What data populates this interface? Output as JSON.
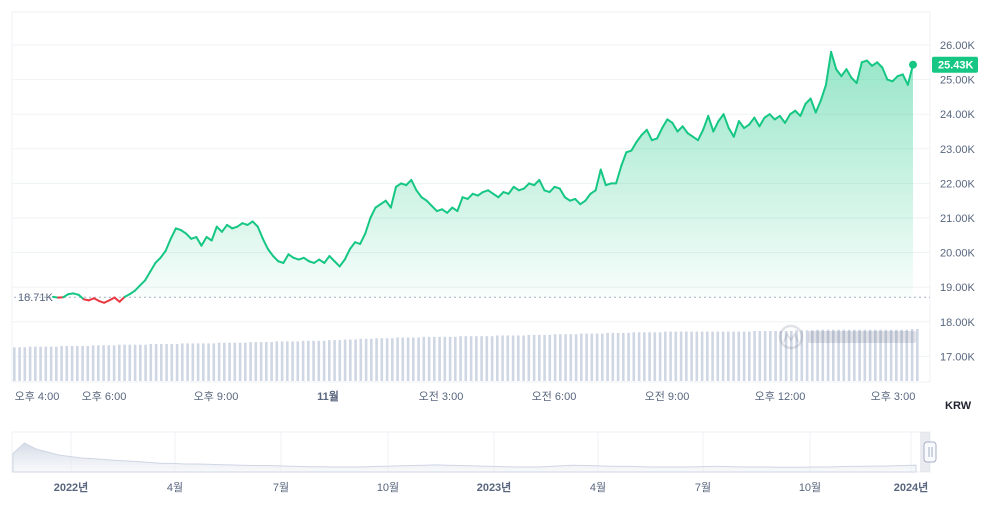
{
  "chart_data": {
    "type": "line",
    "currency": "KRW",
    "y_ticks": [
      "26.00K",
      "25.00K",
      "24.00K",
      "23.00K",
      "22.00K",
      "21.00K",
      "20.00K",
      "19.00K",
      "18.00K",
      "17.00K"
    ],
    "ylim": [
      16500,
      26600
    ],
    "x_ticks": [
      "오후 4:00",
      "오후 6:00",
      "오후 9:00",
      "11월",
      "오전 3:00",
      "오전 6:00",
      "오전 9:00",
      "오후 12:00",
      "오후 3:00"
    ],
    "start_label": "18.71K",
    "start_value": 18710,
    "current_label": "25.43K",
    "current_value": 25430,
    "colors": {
      "up": "#16c784",
      "down": "#ea3943",
      "volume": "#cfd6e4",
      "grid": "#eff2f5"
    },
    "series": [
      {
        "values": [
          18.72,
          18.7,
          18.71,
          18.8,
          18.82,
          18.78,
          18.65,
          18.62,
          18.68,
          18.6,
          18.55,
          18.62,
          18.7,
          18.58,
          18.72,
          18.8,
          18.9,
          19.05,
          19.2,
          19.45,
          19.7,
          19.85,
          20.05,
          20.4,
          20.7,
          20.65,
          20.55,
          20.4,
          20.45,
          20.2,
          20.45,
          20.35,
          20.75,
          20.6,
          20.8,
          20.7,
          20.75,
          20.85,
          20.8,
          20.9,
          20.75,
          20.4,
          20.1,
          19.9,
          19.75,
          19.7,
          19.95,
          19.85,
          19.8,
          19.85,
          19.75,
          19.7,
          19.8,
          19.7,
          19.9,
          19.75,
          19.6,
          19.8,
          20.1,
          20.3,
          20.25,
          20.55,
          21.0,
          21.3,
          21.4,
          21.5,
          21.3,
          21.9,
          22.0,
          21.95,
          22.1,
          21.8,
          21.6,
          21.5,
          21.35,
          21.2,
          21.25,
          21.15,
          21.3,
          21.2,
          21.6,
          21.55,
          21.7,
          21.65,
          21.75,
          21.8,
          21.7,
          21.6,
          21.75,
          21.7,
          21.9,
          21.8,
          21.85,
          22.0,
          21.95,
          22.1,
          21.8,
          21.75,
          21.9,
          21.85,
          21.6,
          21.5,
          21.55,
          21.4,
          21.5,
          21.7,
          21.8,
          22.4,
          21.95,
          22.0,
          22.0,
          22.5,
          22.9,
          22.95,
          23.2,
          23.4,
          23.55,
          23.25,
          23.3,
          23.6,
          23.85,
          23.75,
          23.5,
          23.65,
          23.45,
          23.35,
          23.25,
          23.55,
          23.95,
          23.5,
          23.8,
          24.0,
          23.6,
          23.35,
          23.8,
          23.6,
          23.7,
          23.9,
          23.65,
          23.9,
          24.0,
          23.85,
          23.95,
          23.75,
          24.0,
          24.1,
          23.95,
          24.3,
          24.45,
          24.05,
          24.4,
          24.85,
          25.8,
          25.3,
          25.1,
          25.3,
          25.05,
          24.9,
          25.5,
          25.55,
          25.4,
          25.5,
          25.35,
          25.0,
          24.95,
          25.1,
          25.15,
          24.85,
          25.43
        ]
      }
    ],
    "volume": [
      24,
      24,
      24,
      25,
      25,
      25,
      25,
      25,
      25,
      26,
      26,
      26,
      26,
      26,
      26,
      27,
      27,
      27,
      27,
      27,
      28,
      28,
      28,
      28,
      28,
      28,
      29,
      29,
      29,
      29,
      29,
      29,
      30,
      30,
      30,
      30,
      30,
      30,
      30,
      31,
      31,
      31,
      31,
      31,
      31,
      32,
      32,
      32,
      32,
      32,
      33,
      33,
      33,
      33,
      33,
      34,
      34,
      34,
      34,
      34,
      35,
      35,
      35,
      36,
      36,
      36,
      37,
      37,
      37,
      38,
      38,
      38,
      38,
      39,
      39,
      39,
      39,
      39,
      40,
      40,
      40,
      40,
      40,
      40,
      40,
      41,
      41,
      41,
      41,
      41,
      41,
      41,
      42,
      42,
      42,
      42,
      42,
      42,
      43,
      43,
      43,
      43,
      43,
      44,
      44,
      44,
      44,
      44,
      45,
      45,
      45,
      45,
      45,
      46,
      46,
      46,
      46,
      46,
      47,
      47,
      47,
      47,
      47,
      47,
      48,
      48,
      48,
      48,
      48,
      48,
      48,
      48,
      48,
      48,
      48,
      48,
      48,
      48,
      48,
      48,
      48,
      49,
      49,
      49,
      49,
      49,
      49,
      49,
      49,
      50,
      50,
      50,
      50,
      51,
      51,
      51,
      51,
      51,
      51,
      51,
      51,
      51,
      51,
      51,
      51,
      51,
      51,
      51,
      51,
      51,
      51,
      52,
      52
    ],
    "navigator": {
      "labels": [
        "2022년",
        "4월",
        "7월",
        "10월",
        "2023년",
        "4월",
        "7월",
        "10월",
        "2024년"
      ],
      "values": [
        0.55,
        0.9,
        0.7,
        0.6,
        0.5,
        0.45,
        0.4,
        0.38,
        0.35,
        0.32,
        0.3,
        0.28,
        0.25,
        0.22,
        0.22,
        0.2,
        0.2,
        0.19,
        0.18,
        0.17,
        0.16,
        0.15,
        0.15,
        0.14,
        0.13,
        0.12,
        0.11,
        0.11,
        0.1,
        0.1,
        0.1,
        0.11,
        0.12,
        0.13,
        0.14,
        0.15,
        0.16,
        0.17,
        0.16,
        0.15,
        0.14,
        0.13,
        0.12,
        0.11,
        0.1,
        0.1,
        0.1,
        0.12,
        0.14,
        0.16,
        0.15,
        0.14,
        0.13,
        0.12,
        0.12,
        0.11,
        0.1,
        0.1,
        0.1,
        0.1,
        0.11,
        0.12,
        0.12,
        0.11,
        0.1,
        0.1,
        0.1,
        0.09,
        0.09,
        0.09,
        0.1,
        0.1,
        0.11,
        0.12,
        0.12,
        0.13,
        0.13,
        0.14,
        0.15,
        0.16
      ]
    }
  }
}
